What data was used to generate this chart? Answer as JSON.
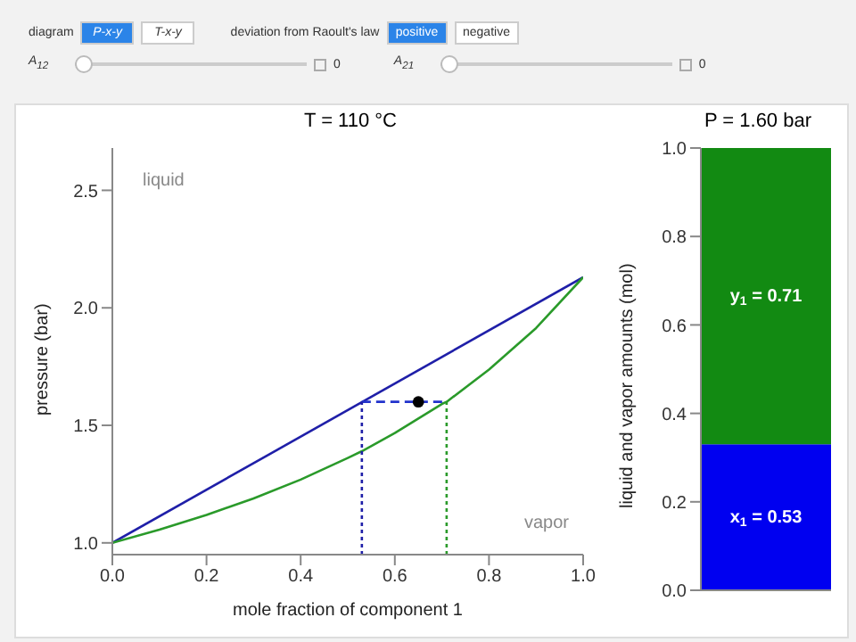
{
  "chart_data": [
    {
      "type": "other",
      "annotations": [
        "diagram",
        "P-x-y",
        "T-x-y",
        "deviation from Raoult's law",
        "positive",
        "negative",
        "A$_{12}$",
        "0",
        "A$_{21}$",
        "0"
      ]
    },
    {
      "type": "line",
      "title": "T = 110 °C",
      "xlabel": "mole fraction of component 1",
      "ylabel": "pressure (bar)",
      "xlim": [
        0,
        1
      ],
      "ylim": [
        0.95,
        2.68
      ],
      "xticks": [
        {
          "value": 0,
          "label": "0.0"
        },
        0.2,
        0.4,
        0.6,
        0.8,
        {
          "value": 1,
          "label": "1.0"
        }
      ],
      "yticks": [
        {
          "value": 1,
          "label": "1.0"
        },
        1.5,
        {
          "value": 2,
          "label": "2.0"
        },
        2.5
      ],
      "grid": false,
      "series": [
        {
          "type": "line",
          "color": "#1f1fa8",
          "line_style": "solid",
          "x": [
            0,
            1
          ],
          "values": [
            1.0,
            2.13
          ]
        },
        {
          "type": "line",
          "color": "#2a9a2a",
          "line_style": "solid",
          "x": [
            0,
            0.1,
            0.2,
            0.3,
            0.4,
            0.5,
            0.53,
            0.6,
            0.7,
            0.71,
            0.8,
            0.9,
            1
          ],
          "values": [
            1.0,
            1.056,
            1.119,
            1.189,
            1.269,
            1.361,
            1.39,
            1.467,
            1.591,
            1.6,
            1.737,
            1.914,
            2.13
          ]
        },
        {
          "type": "line",
          "color": "#2233cc",
          "line_style": "dashed",
          "x": [
            0.53,
            0.71
          ],
          "values": [
            1.6,
            1.6
          ]
        },
        {
          "type": "line",
          "color": "#1f1fa8",
          "line_style": "dotted",
          "x": [
            0.53,
            0.53
          ],
          "values": [
            0.95,
            1.6
          ]
        },
        {
          "type": "line",
          "color": "#2a9a2a",
          "line_style": "dotted",
          "x": [
            0.71,
            0.71
          ],
          "values": [
            0.95,
            1.6
          ]
        },
        {
          "type": "scatter",
          "color": "#000000",
          "marker": "circle",
          "x": [
            0.65
          ],
          "values": [
            1.6
          ]
        }
      ],
      "annotations": [
        "liquid",
        "vapor"
      ]
    },
    {
      "type": "bar",
      "title": "P = 1.60 bar",
      "ylabel": "liquid and vapor amounts (mol)",
      "categories": [
        null
      ],
      "stacked": true,
      "ylim": [
        0,
        1.0
      ],
      "yticks": [
        {
          "value": 0,
          "label": "0.0"
        },
        0.2,
        0.4,
        0.6,
        0.8,
        {
          "value": 1,
          "label": "1.0"
        }
      ],
      "tick_labels": "y",
      "grid": false,
      "series": [
        {
          "color": "#0000f0",
          "values": [
            0.33
          ]
        },
        {
          "color": "#128a12",
          "values": [
            0.67
          ]
        }
      ],
      "annotations": [
        "x$_{1}$ = 0.53",
        "y$_{1}$ = 0.71"
      ]
    }
  ]
}
